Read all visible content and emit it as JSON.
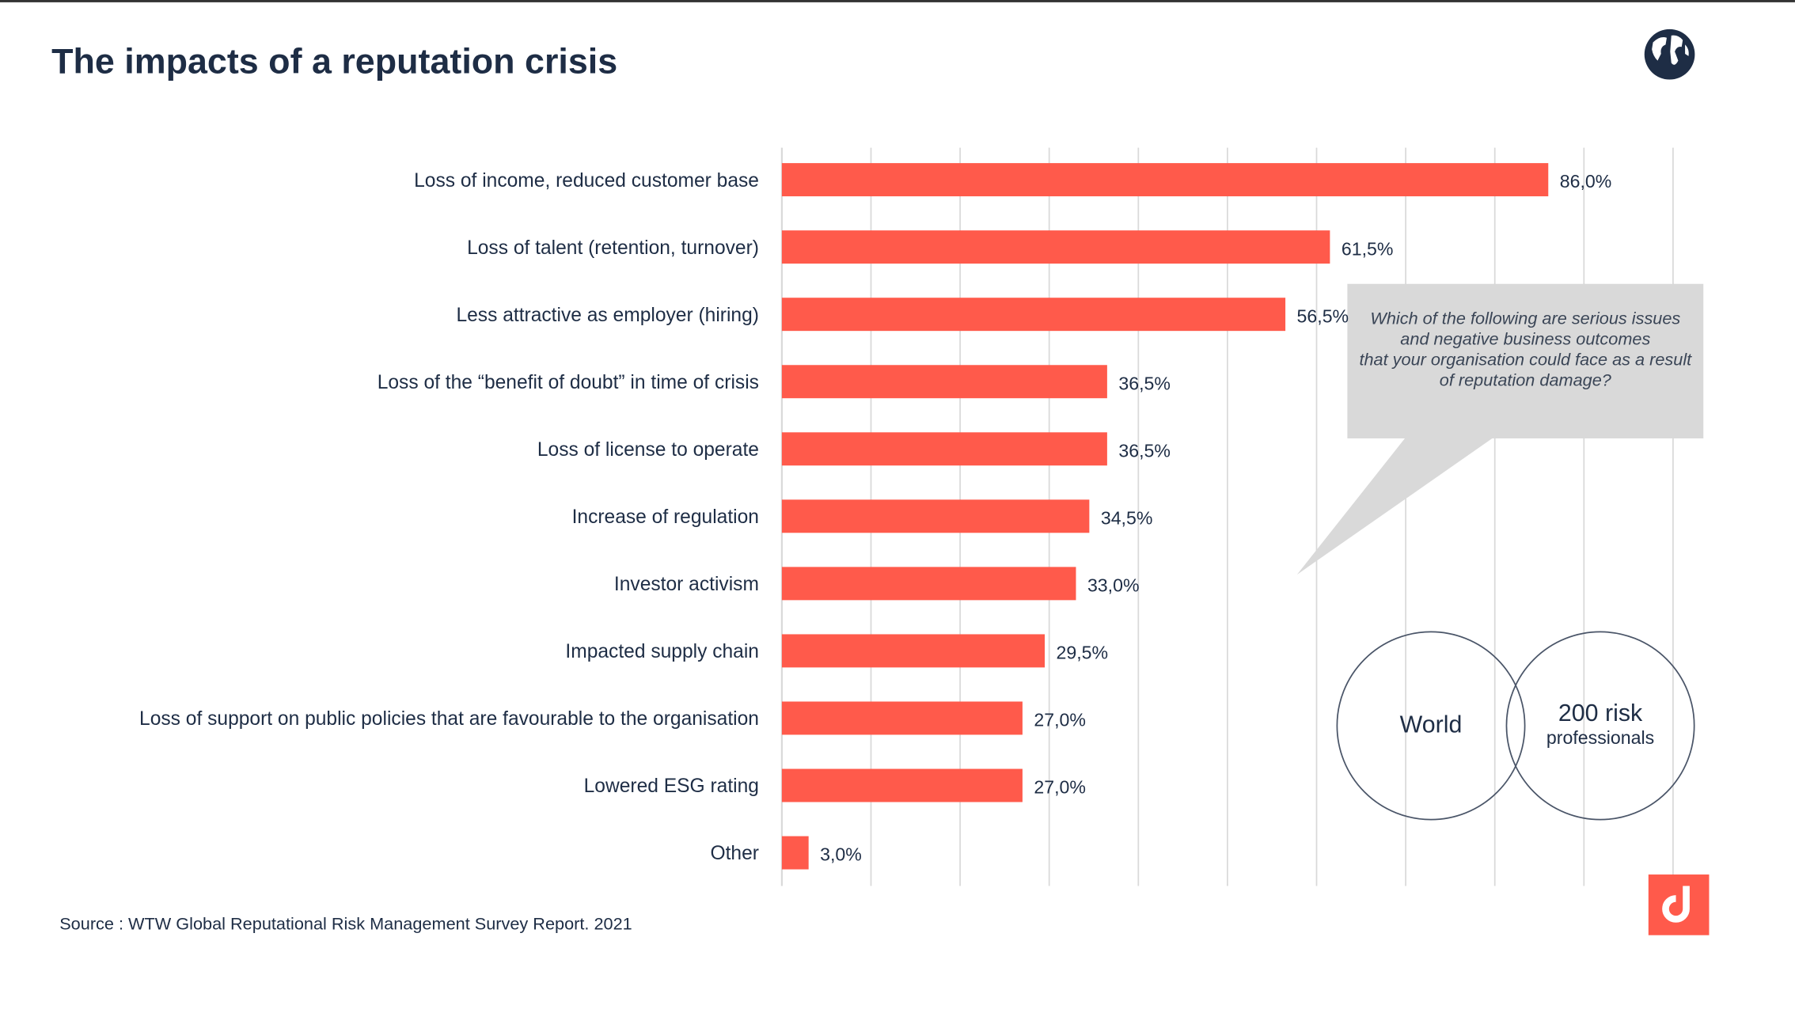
{
  "title": "The impacts of a reputation crisis",
  "source": "Source : WTW Global Reputational Risk Management Survey Report. 2021",
  "callout": "Which of the following are serious issues and negative business outcomes\nthat your organisation could face as a result of reputation damage?",
  "circles": {
    "left": "World",
    "right_big": "200 risk",
    "right_small": "professionals"
  },
  "icons": {
    "top_right": "globe-icon",
    "bottom_right": "brand-logo"
  },
  "colors": {
    "bar": "#ff5a4b",
    "text": "#1e2d45",
    "callout": "#d9d9d9",
    "grid": "#d9d9d9"
  },
  "chart_data": {
    "type": "bar",
    "orientation": "horizontal",
    "categories": [
      "Loss of income, reduced customer base",
      "Loss of talent (retention, turnover)",
      "Less attractive as employer (hiring)",
      "Loss of the “benefit of doubt” in time of crisis",
      "Loss of license to operate",
      "Increase of regulation",
      "Investor activism",
      "Impacted supply chain",
      "Loss of support on public policies that are favourable to the organisation",
      "Lowered ESG rating",
      "Other"
    ],
    "values": [
      86.0,
      61.5,
      56.5,
      36.5,
      36.5,
      34.5,
      33.0,
      29.5,
      27.0,
      27.0,
      3.0
    ],
    "data_labels": [
      "86,0%",
      "61,5%",
      "56,5%",
      "36,5%",
      "36,5%",
      "34,5%",
      "33,0%",
      "29,5%",
      "27,0%",
      "27,0%",
      "3,0%"
    ],
    "xlim": [
      0,
      100
    ],
    "grid": true,
    "legend": "none"
  }
}
